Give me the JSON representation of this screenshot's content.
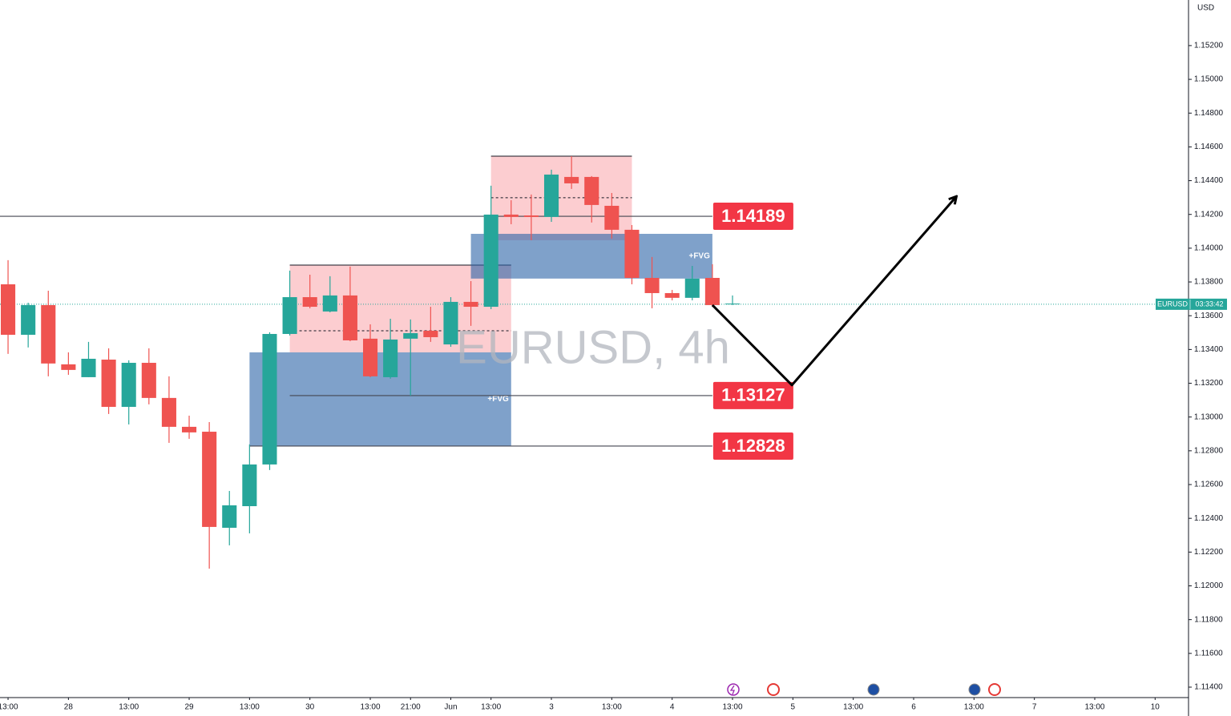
{
  "chart_data": {
    "type": "candlestick",
    "title": "EURUSD, 4h",
    "symbol": "EURUSD",
    "currency": "USD",
    "countdown": "03:33:42",
    "up_color": "#26a69a",
    "down_color": "#ef5350",
    "x": [
      0,
      1,
      2,
      3,
      4,
      5,
      6,
      7,
      8,
      9,
      10,
      11,
      12,
      13,
      14,
      15,
      16,
      17,
      18,
      19,
      20,
      21,
      22,
      23,
      24,
      25,
      26,
      27,
      28,
      29,
      30,
      31,
      32,
      33,
      34,
      35,
      36
    ],
    "open": [
      1.13786,
      1.13487,
      1.13663,
      1.13312,
      1.13236,
      1.1334,
      1.1306,
      1.13321,
      1.13113,
      1.12942,
      1.12913,
      1.12344,
      1.12472,
      1.12719,
      1.13492,
      1.1371,
      1.13625,
      1.1372,
      1.13464,
      1.13236,
      1.13464,
      1.13511,
      1.1343,
      1.13682,
      1.13653,
      1.14199,
      1.14194,
      1.14185,
      1.14422,
      1.14422,
      1.14251,
      1.14109,
      1.13824,
      1.13734,
      1.13706,
      1.13824,
      1.13668
    ],
    "high": [
      1.13929,
      1.13677,
      1.13748,
      1.13383,
      1.13445,
      1.13407,
      1.13336,
      1.13407,
      1.13241,
      1.13008,
      1.1297,
      1.12562,
      1.12838,
      1.13502,
      1.13867,
      1.13843,
      1.13834,
      1.13891,
      1.13549,
      1.13582,
      1.13578,
      1.13653,
      1.1371,
      1.13805,
      1.1437,
      1.14284,
      1.14318,
      1.14465,
      1.14545,
      1.14427,
      1.14327,
      1.14137,
      1.13948,
      1.13753,
      1.13895,
      1.13905,
      1.1372
    ],
    "low": [
      1.13374,
      1.13412,
      1.13241,
      1.1325,
      1.13236,
      1.13018,
      1.12956,
      1.13075,
      1.12847,
      1.12871,
      1.12102,
      1.1224,
      1.12311,
      1.12686,
      1.13483,
      1.13644,
      1.1362,
      1.13449,
      1.13236,
      1.13227,
      1.13127,
      1.13445,
      1.13416,
      1.1354,
      1.13639,
      1.14142,
      1.14047,
      1.14156,
      1.14351,
      1.14152,
      1.14057,
      1.13786,
      1.13644,
      1.13691,
      1.13691,
      1.13653,
      1.13663
    ],
    "close": [
      1.13487,
      1.13663,
      1.13317,
      1.13279,
      1.13345,
      1.1306,
      1.13321,
      1.13113,
      1.12942,
      1.12909,
      1.12349,
      1.12477,
      1.12719,
      1.13492,
      1.1371,
      1.13653,
      1.1372,
      1.13454,
      1.13241,
      1.13459,
      1.13497,
      1.13473,
      1.13682,
      1.13653,
      1.14199,
      1.14185,
      1.14185,
      1.14436,
      1.14384,
      1.14256,
      1.14109,
      1.13824,
      1.13734,
      1.13706,
      1.1382,
      1.13663,
      1.13672
    ],
    "current_price": 1.13668,
    "xlim": [
      -0.4,
      58.66
    ],
    "ylim": [
      1.11343,
      1.1547
    ],
    "xticks": [
      {
        "value": 0,
        "label": "13:00"
      },
      {
        "value": 3,
        "label": "28"
      },
      {
        "value": 6,
        "label": "13:00"
      },
      {
        "value": 9,
        "label": "29"
      },
      {
        "value": 12,
        "label": "13:00"
      },
      {
        "value": 15,
        "label": "30"
      },
      {
        "value": 18,
        "label": "13:00"
      },
      {
        "value": 20,
        "label": "21:00"
      },
      {
        "value": 22,
        "label": "Jun"
      },
      {
        "value": 24,
        "label": "13:00"
      },
      {
        "value": 27,
        "label": "3"
      },
      {
        "value": 30,
        "label": "13:00"
      },
      {
        "value": 33,
        "label": "4"
      },
      {
        "value": 36,
        "label": "13:00"
      },
      {
        "value": 39,
        "label": "5"
      },
      {
        "value": 42,
        "label": "13:00"
      },
      {
        "value": 45,
        "label": "6"
      },
      {
        "value": 48,
        "label": "13:00"
      },
      {
        "value": 51,
        "label": "7"
      },
      {
        "value": 54,
        "label": "13:00"
      },
      {
        "value": 57,
        "label": "10"
      }
    ],
    "yticks": [
      {
        "value": 1.152,
        "label": "1.15200"
      },
      {
        "value": 1.15,
        "label": "1.15000"
      },
      {
        "value": 1.148,
        "label": "1.14800"
      },
      {
        "value": 1.146,
        "label": "1.14600"
      },
      {
        "value": 1.144,
        "label": "1.14400"
      },
      {
        "value": 1.142,
        "label": "1.14200"
      },
      {
        "value": 1.14,
        "label": "1.14000"
      },
      {
        "value": 1.138,
        "label": "1.13800"
      },
      {
        "value": 1.136,
        "label": "1.13600"
      },
      {
        "value": 1.134,
        "label": "1.13400"
      },
      {
        "value": 1.132,
        "label": "1.13200"
      },
      {
        "value": 1.13,
        "label": "1.13000"
      },
      {
        "value": 1.128,
        "label": "1.12800"
      },
      {
        "value": 1.126,
        "label": "1.12600"
      },
      {
        "value": 1.124,
        "label": "1.12400"
      },
      {
        "value": 1.122,
        "label": "1.12200"
      },
      {
        "value": 1.12,
        "label": "1.12000"
      },
      {
        "value": 1.118,
        "label": "1.11800"
      },
      {
        "value": 1.116,
        "label": "1.11600"
      },
      {
        "value": 1.114,
        "label": "1.11400"
      }
    ],
    "zones": [
      {
        "x": [
          24,
          31
        ],
        "y": [
          1.14047,
          1.14545
        ],
        "mid": 1.14299,
        "color": "#f23645"
      },
      {
        "x": [
          14,
          25
        ],
        "y": [
          1.13383,
          1.139
        ],
        "mid": 1.13511,
        "color": "#f23645"
      },
      {
        "x": [
          23,
          35
        ],
        "y": [
          1.1382,
          1.14085
        ],
        "color": "#2962a6",
        "label": "+FVG"
      },
      {
        "x": [
          12,
          25
        ],
        "y": [
          1.12828,
          1.13383
        ],
        "color": "#2962a6",
        "label": "+FVG"
      }
    ],
    "levels": [
      {
        "value": 1.14189,
        "x": [
          -0.4,
          35
        ]
      },
      {
        "value": 1.13127,
        "x": [
          14,
          35
        ]
      },
      {
        "value": 1.12828,
        "x": [
          12,
          35
        ]
      }
    ],
    "arrow": {
      "x": [
        35,
        38.95,
        47.1
      ],
      "y": [
        1.13663,
        1.13189,
        1.14303
      ]
    }
  }
}
